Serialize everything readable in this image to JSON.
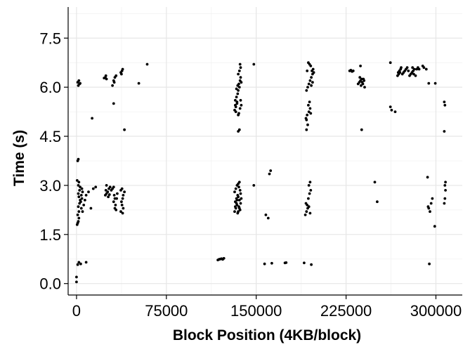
{
  "chart_data": {
    "type": "scatter",
    "title": "",
    "xlabel": "Block Position (4KB/block)",
    "ylabel": "Time (s)",
    "xlim": [
      -7000,
      322000
    ],
    "ylim": [
      -0.35,
      8.45
    ],
    "xticks": [
      0,
      75000,
      150000,
      225000,
      300000
    ],
    "xtick_labels": [
      "0",
      "75000",
      "150000",
      "225000",
      "300000"
    ],
    "yticks": [
      0.0,
      1.5,
      3.0,
      4.5,
      6.0,
      7.5
    ],
    "ytick_labels": [
      "0.0",
      "1.5",
      "3.0",
      "4.5",
      "6.0",
      "7.5"
    ],
    "grid": true,
    "legend": "none",
    "point_color": "#000000",
    "series": [
      {
        "points": [
          [
            0,
            0.05
          ],
          [
            0,
            0.2
          ],
          [
            1000,
            0.58
          ],
          [
            2000,
            0.65
          ],
          [
            3500,
            0.6
          ],
          [
            8000,
            0.65
          ],
          [
            500,
            1.8
          ],
          [
            1000,
            1.85
          ],
          [
            1500,
            1.9
          ],
          [
            2000,
            2.0
          ],
          [
            1000,
            2.1
          ],
          [
            2000,
            2.2
          ],
          [
            1500,
            2.35
          ],
          [
            2500,
            2.45
          ],
          [
            3000,
            2.55
          ],
          [
            2000,
            2.65
          ],
          [
            1500,
            2.75
          ],
          [
            2500,
            2.85
          ],
          [
            3000,
            2.95
          ],
          [
            1500,
            3.0
          ],
          [
            2000,
            3.1
          ],
          [
            500,
            3.15
          ],
          [
            1000,
            3.75
          ],
          [
            1500,
            3.8
          ],
          [
            4500,
            2.6
          ],
          [
            4000,
            2.7
          ],
          [
            5000,
            2.8
          ],
          [
            4500,
            2.9
          ],
          [
            3500,
            2.5
          ],
          [
            4000,
            2.3
          ],
          [
            5000,
            2.2
          ],
          [
            6000,
            2.4
          ],
          [
            7000,
            2.55
          ],
          [
            8000,
            2.7
          ],
          [
            10000,
            2.8
          ],
          [
            12000,
            2.3
          ],
          [
            14000,
            2.9
          ],
          [
            16000,
            2.95
          ],
          [
            1500,
            6.05
          ],
          [
            2500,
            6.1
          ],
          [
            1000,
            6.15
          ],
          [
            2000,
            6.2
          ],
          [
            3000,
            6.12
          ],
          [
            13000,
            5.05
          ],
          [
            24000,
            6.3
          ],
          [
            25000,
            6.25
          ],
          [
            24500,
            6.35
          ],
          [
            23000,
            6.28
          ],
          [
            30000,
            6.05
          ],
          [
            31000,
            6.2
          ],
          [
            32000,
            6.3
          ],
          [
            33000,
            6.35
          ],
          [
            31500,
            6.15
          ],
          [
            37000,
            6.45
          ],
          [
            38000,
            6.5
          ],
          [
            38500,
            6.55
          ],
          [
            37500,
            6.4
          ],
          [
            31000,
            5.5
          ],
          [
            40000,
            4.7
          ],
          [
            52000,
            6.12
          ],
          [
            59000,
            6.7
          ],
          [
            24000,
            2.7
          ],
          [
            25000,
            2.75
          ],
          [
            26000,
            2.8
          ],
          [
            27000,
            2.9
          ],
          [
            28000,
            2.95
          ],
          [
            25000,
            3.0
          ],
          [
            26500,
            2.65
          ],
          [
            24500,
            2.85
          ],
          [
            27500,
            2.72
          ],
          [
            29000,
            2.85
          ],
          [
            30000,
            2.9
          ],
          [
            31000,
            2.95
          ],
          [
            31500,
            2.7
          ],
          [
            32000,
            2.6
          ],
          [
            31000,
            2.5
          ],
          [
            32500,
            2.4
          ],
          [
            33000,
            2.25
          ],
          [
            32000,
            2.3
          ],
          [
            33500,
            2.6
          ],
          [
            34000,
            2.75
          ],
          [
            37000,
            2.85
          ],
          [
            38000,
            2.9
          ],
          [
            39000,
            2.7
          ],
          [
            38500,
            2.6
          ],
          [
            37500,
            2.5
          ],
          [
            38000,
            2.4
          ],
          [
            39000,
            2.3
          ],
          [
            37000,
            2.2
          ],
          [
            38500,
            2.15
          ],
          [
            40000,
            2.8
          ],
          [
            118000,
            0.72
          ],
          [
            119000,
            0.74
          ],
          [
            120000,
            0.75
          ],
          [
            121000,
            0.76
          ],
          [
            122000,
            0.74
          ],
          [
            123000,
            0.77
          ],
          [
            132000,
            2.2
          ],
          [
            133000,
            2.3
          ],
          [
            134000,
            2.4
          ],
          [
            132500,
            2.5
          ],
          [
            133500,
            2.6
          ],
          [
            134500,
            2.7
          ],
          [
            132000,
            2.8
          ],
          [
            133000,
            2.9
          ],
          [
            134000,
            3.0
          ],
          [
            135000,
            3.05
          ],
          [
            136000,
            3.1
          ],
          [
            135500,
            2.95
          ],
          [
            136500,
            2.85
          ],
          [
            137000,
            2.75
          ],
          [
            135000,
            2.65
          ],
          [
            136000,
            2.55
          ],
          [
            137000,
            2.45
          ],
          [
            135500,
            2.35
          ],
          [
            136500,
            2.25
          ],
          [
            134500,
            2.15
          ],
          [
            133500,
            2.45
          ],
          [
            132500,
            2.35
          ],
          [
            134000,
            2.55
          ],
          [
            135000,
            2.2
          ],
          [
            137500,
            2.6
          ],
          [
            136000,
            2.3
          ],
          [
            132000,
            5.3
          ],
          [
            133000,
            5.4
          ],
          [
            134000,
            5.5
          ],
          [
            132500,
            5.6
          ],
          [
            133500,
            5.7
          ],
          [
            134500,
            5.8
          ],
          [
            135000,
            5.9
          ],
          [
            136000,
            6.0
          ],
          [
            135500,
            6.1
          ],
          [
            136500,
            6.2
          ],
          [
            137000,
            6.3
          ],
          [
            135000,
            6.4
          ],
          [
            136000,
            6.5
          ],
          [
            137000,
            6.6
          ],
          [
            136500,
            6.7
          ],
          [
            135500,
            5.2
          ],
          [
            136500,
            5.35
          ],
          [
            137500,
            5.45
          ],
          [
            134000,
            5.55
          ],
          [
            133000,
            5.25
          ],
          [
            135000,
            4.65
          ],
          [
            136000,
            4.7
          ],
          [
            137000,
            5.6
          ],
          [
            135000,
            5.15
          ],
          [
            134500,
            6.05
          ],
          [
            133500,
            5.95
          ],
          [
            137500,
            6.15
          ],
          [
            132500,
            5.45
          ],
          [
            148000,
            6.7
          ],
          [
            148000,
            3.0
          ],
          [
            157000,
            0.6
          ],
          [
            163000,
            0.62
          ],
          [
            174000,
            0.63
          ],
          [
            175000,
            0.64
          ],
          [
            158000,
            2.1
          ],
          [
            160000,
            2.0
          ],
          [
            161000,
            3.35
          ],
          [
            162000,
            3.45
          ],
          [
            190000,
            0.63
          ],
          [
            196000,
            0.58
          ],
          [
            191000,
            2.1
          ],
          [
            192000,
            2.2
          ],
          [
            193000,
            2.3
          ],
          [
            191500,
            2.45
          ],
          [
            192500,
            2.4
          ],
          [
            194000,
            2.35
          ],
          [
            195000,
            2.15
          ],
          [
            193500,
            2.6
          ],
          [
            194500,
            2.75
          ],
          [
            195500,
            2.85
          ],
          [
            194000,
            3.0
          ],
          [
            195000,
            3.1
          ],
          [
            192000,
            4.7
          ],
          [
            193000,
            4.85
          ],
          [
            191500,
            5.05
          ],
          [
            192500,
            5.15
          ],
          [
            194000,
            5.25
          ],
          [
            195000,
            5.35
          ],
          [
            193500,
            5.45
          ],
          [
            194500,
            5.55
          ],
          [
            192000,
            5.0
          ],
          [
            195500,
            5.2
          ],
          [
            192000,
            5.9
          ],
          [
            193000,
            6.0
          ],
          [
            194000,
            6.1
          ],
          [
            195000,
            6.2
          ],
          [
            196000,
            6.3
          ],
          [
            197000,
            6.4
          ],
          [
            196500,
            6.5
          ],
          [
            197500,
            6.55
          ],
          [
            195500,
            6.65
          ],
          [
            194500,
            6.7
          ],
          [
            193500,
            6.75
          ],
          [
            192500,
            6.5
          ],
          [
            196000,
            6.05
          ],
          [
            198000,
            6.45
          ],
          [
            197000,
            6.15
          ],
          [
            228000,
            6.5
          ],
          [
            229000,
            6.52
          ],
          [
            230000,
            6.48
          ],
          [
            231000,
            6.5
          ],
          [
            235000,
            6.1
          ],
          [
            236000,
            6.15
          ],
          [
            237000,
            6.2
          ],
          [
            238000,
            6.25
          ],
          [
            236500,
            6.3
          ],
          [
            239000,
            6.1
          ],
          [
            240000,
            6.2
          ],
          [
            237500,
            6.05
          ],
          [
            238500,
            6.15
          ],
          [
            239500,
            6.25
          ],
          [
            240500,
            6.0
          ],
          [
            237000,
            6.65
          ],
          [
            238000,
            4.7
          ],
          [
            249000,
            3.1
          ],
          [
            251000,
            2.5
          ],
          [
            262000,
            5.4
          ],
          [
            263000,
            5.3
          ],
          [
            266000,
            5.25
          ],
          [
            262000,
            6.75
          ],
          [
            268000,
            6.35
          ],
          [
            269000,
            6.4
          ],
          [
            270000,
            6.45
          ],
          [
            269500,
            6.5
          ],
          [
            270500,
            6.55
          ],
          [
            271000,
            6.6
          ],
          [
            268500,
            6.45
          ],
          [
            272000,
            6.4
          ],
          [
            273000,
            6.45
          ],
          [
            274000,
            6.5
          ],
          [
            275000,
            6.55
          ],
          [
            276000,
            6.6
          ],
          [
            277000,
            6.5
          ],
          [
            278000,
            6.35
          ],
          [
            279000,
            6.4
          ],
          [
            280000,
            6.45
          ],
          [
            281000,
            6.5
          ],
          [
            282000,
            6.55
          ],
          [
            280500,
            6.6
          ],
          [
            281500,
            6.4
          ],
          [
            283000,
            6.35
          ],
          [
            284000,
            6.55
          ],
          [
            285000,
            6.6
          ],
          [
            286000,
            6.55
          ],
          [
            289000,
            6.65
          ],
          [
            290000,
            6.6
          ],
          [
            292000,
            6.55
          ],
          [
            294000,
            6.12
          ],
          [
            293000,
            3.25
          ],
          [
            293500,
            2.35
          ],
          [
            294000,
            2.3
          ],
          [
            295000,
            2.2
          ],
          [
            296000,
            2.45
          ],
          [
            297000,
            2.6
          ],
          [
            294500,
            0.6
          ],
          [
            299000,
            1.75
          ],
          [
            299500,
            6.12
          ],
          [
            307000,
            5.55
          ],
          [
            307500,
            5.45
          ],
          [
            307000,
            4.65
          ],
          [
            307000,
            2.45
          ],
          [
            307500,
            2.6
          ],
          [
            308000,
            2.85
          ],
          [
            307500,
            3.0
          ],
          [
            308000,
            3.1
          ]
        ]
      }
    ]
  }
}
